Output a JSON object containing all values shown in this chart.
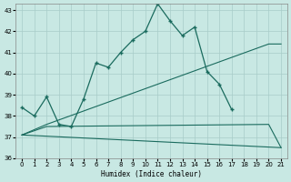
{
  "xlabel": "Humidex (Indice chaleur)",
  "xlim": [
    -0.5,
    21.5
  ],
  "ylim": [
    36,
    43.3
  ],
  "yticks": [
    36,
    37,
    38,
    39,
    40,
    41,
    42,
    43
  ],
  "xticks": [
    0,
    1,
    2,
    3,
    4,
    5,
    6,
    7,
    8,
    9,
    10,
    11,
    12,
    13,
    14,
    15,
    16,
    17,
    18,
    19,
    20,
    21
  ],
  "bg_color": "#c8e8e3",
  "line_color": "#1a6b5e",
  "grid_color": "#a8ccc8",
  "line1_x": [
    0,
    1,
    2,
    3,
    4,
    5,
    6,
    7,
    8,
    9,
    10,
    11,
    12,
    13,
    14,
    15,
    16,
    17
  ],
  "line1_y": [
    38.4,
    38.0,
    38.9,
    37.6,
    37.5,
    38.8,
    40.5,
    40.3,
    41.0,
    41.6,
    42.0,
    43.3,
    42.5,
    41.8,
    42.2,
    40.1,
    39.5,
    38.3
  ],
  "line2_x": [
    0,
    2,
    20,
    21
  ],
  "line2_y": [
    37.1,
    37.6,
    41.4,
    41.4
  ],
  "line3_x": [
    0,
    2,
    20,
    21
  ],
  "line3_y": [
    37.1,
    37.5,
    37.6,
    36.5
  ],
  "line4_x": [
    0,
    21
  ],
  "line4_y": [
    37.1,
    36.5
  ]
}
